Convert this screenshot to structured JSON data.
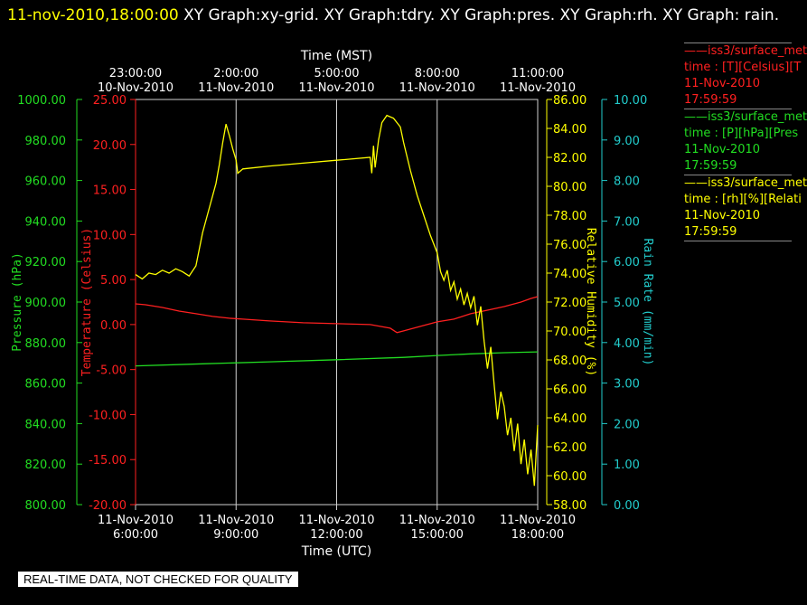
{
  "title": {
    "timestamp": "11-nov-2010,18:00:00",
    "text": "XY Graph:xy-grid.  XY Graph:tdry.  XY Graph:pres.  XY Graph:rh.  XY Graph: rain."
  },
  "banner": "REAL-TIME DATA, NOT CHECKED FOR QUALITY",
  "legend": [
    {
      "line": "——iss3/surface_met",
      "unit": "time : [T][Celsius][T",
      "date": "11-Nov-2010",
      "time": "17:59:59",
      "color": "#ff2020"
    },
    {
      "line": "——iss3/surface_met",
      "unit": "time : [P][hPa][Pres",
      "date": "11-Nov-2010",
      "time": "17:59:59",
      "color": "#22dd22"
    },
    {
      "line": "——iss3/surface_met",
      "unit": "time : [rh][%][Relati",
      "date": "11-Nov-2010",
      "time": "17:59:59",
      "color": "#ffff00"
    }
  ],
  "chart_data": {
    "type": "line",
    "grid": true,
    "x_top": {
      "label": "Time (MST)",
      "ticks": [
        {
          "x": 0,
          "time": "23:00:00",
          "date": "10-Nov-2010"
        },
        {
          "x": 3,
          "time": "2:00:00",
          "date": "11-Nov-2010"
        },
        {
          "x": 6,
          "time": "5:00:00",
          "date": "11-Nov-2010"
        },
        {
          "x": 9,
          "time": "8:00:00",
          "date": "11-Nov-2010"
        },
        {
          "x": 12,
          "time": "11:00:00",
          "date": "11-Nov-2010"
        }
      ]
    },
    "x_bottom": {
      "label": "Time (UTC)",
      "xlim": [
        0,
        12
      ],
      "ticks": [
        {
          "x": 0,
          "date": "11-Nov-2010",
          "time": "6:00:00"
        },
        {
          "x": 3,
          "date": "11-Nov-2010",
          "time": "9:00:00"
        },
        {
          "x": 6,
          "date": "11-Nov-2010",
          "time": "12:00:00"
        },
        {
          "x": 9,
          "date": "11-Nov-2010",
          "time": "15:00:00"
        },
        {
          "x": 12,
          "date": "11-Nov-2010",
          "time": "18:00:00"
        }
      ]
    },
    "axes": {
      "pressure": {
        "label": "Pressure (hPa)",
        "color": "#22dd22",
        "ylim": [
          800,
          1000
        ],
        "ticks": [
          "800.00",
          "820.00",
          "840.00",
          "860.00",
          "880.00",
          "900.00",
          "920.00",
          "940.00",
          "960.00",
          "980.00",
          "1000.00"
        ]
      },
      "temperature": {
        "label": "Temperature (Celsius)",
        "color": "#ff2020",
        "ylim": [
          -20,
          25
        ],
        "ticks": [
          "-20.00",
          "-15.00",
          "-10.00",
          "-5.00",
          "0.00",
          "5.00",
          "10.00",
          "15.00",
          "20.00",
          "25.00"
        ]
      },
      "rh": {
        "label": "Relative Humidity (%)",
        "color": "#ffff00",
        "ylim": [
          58,
          86
        ],
        "ticks": [
          "58.00",
          "60.00",
          "62.00",
          "64.00",
          "66.00",
          "68.00",
          "70.00",
          "72.00",
          "74.00",
          "76.00",
          "78.00",
          "80.00",
          "82.00",
          "84.00",
          "86.00"
        ]
      },
      "rain": {
        "label": "Rain Rate (mm/min)",
        "color": "#22cccc",
        "ylim": [
          0,
          10
        ],
        "ticks": [
          "0.00",
          "1.00",
          "2.00",
          "3.00",
          "4.00",
          "5.00",
          "6.00",
          "7.00",
          "8.00",
          "9.00",
          "10.00"
        ]
      }
    },
    "series": [
      {
        "axis": "temperature",
        "x": [
          0,
          0.3,
          0.8,
          1.3,
          1.8,
          2.3,
          2.8,
          3.2,
          4,
          5,
          6,
          7,
          7.6,
          7.8,
          8,
          8.5,
          9,
          9.5,
          10,
          10.5,
          11,
          11.5,
          11.8,
          12
        ],
        "y": [
          2.3,
          2.2,
          1.9,
          1.5,
          1.2,
          0.9,
          0.7,
          0.6,
          0.4,
          0.2,
          0.1,
          0.0,
          -0.4,
          -0.9,
          -0.7,
          -0.2,
          0.3,
          0.6,
          1.2,
          1.6,
          2.0,
          2.5,
          2.9,
          3.1
        ]
      },
      {
        "axis": "pressure",
        "x": [
          0,
          2,
          4,
          6,
          8,
          9,
          10,
          11,
          12
        ],
        "y": [
          868.5,
          869.5,
          870.5,
          871.5,
          872.7,
          873.6,
          874.4,
          875.0,
          875.4
        ]
      },
      {
        "axis": "rh",
        "x": [
          0,
          0.2,
          0.4,
          0.6,
          0.8,
          1.0,
          1.2,
          1.4,
          1.6,
          1.8,
          2.0,
          2.2,
          2.4,
          2.5,
          2.6,
          2.7,
          2.8,
          2.9,
          3.0,
          3.05,
          3.2,
          4,
          5,
          6,
          7.0,
          7.05,
          7.1,
          7.15,
          7.25,
          7.35,
          7.5,
          7.7,
          7.9,
          8.0,
          8.2,
          8.4,
          8.6,
          8.8,
          9.0,
          9.1,
          9.2,
          9.3,
          9.4,
          9.5,
          9.6,
          9.7,
          9.8,
          9.9,
          10.0,
          10.1,
          10.2,
          10.3,
          10.4,
          10.5,
          10.6,
          10.7,
          10.8,
          10.9,
          11.0,
          11.1,
          11.2,
          11.3,
          11.4,
          11.5,
          11.6,
          11.7,
          11.8,
          11.9,
          12.0
        ],
        "y": [
          73.9,
          73.6,
          74.0,
          73.9,
          74.2,
          74.0,
          74.3,
          74.1,
          73.8,
          74.5,
          76.8,
          78.5,
          80.2,
          81.5,
          83.0,
          84.3,
          83.5,
          82.6,
          81.8,
          80.9,
          81.2,
          81.4,
          81.6,
          81.8,
          82.0,
          80.9,
          82.8,
          81.3,
          83.2,
          84.4,
          84.9,
          84.7,
          84.1,
          83.0,
          81.1,
          79.4,
          78.0,
          76.6,
          75.4,
          74.1,
          73.5,
          74.2,
          72.8,
          73.4,
          72.2,
          72.9,
          71.8,
          72.6,
          71.6,
          72.4,
          70.4,
          71.7,
          69.3,
          67.4,
          68.9,
          66.3,
          63.9,
          65.8,
          64.8,
          62.8,
          64.0,
          61.7,
          63.6,
          60.8,
          62.5,
          60.1,
          61.8,
          59.3,
          63.5
        ]
      }
    ]
  }
}
